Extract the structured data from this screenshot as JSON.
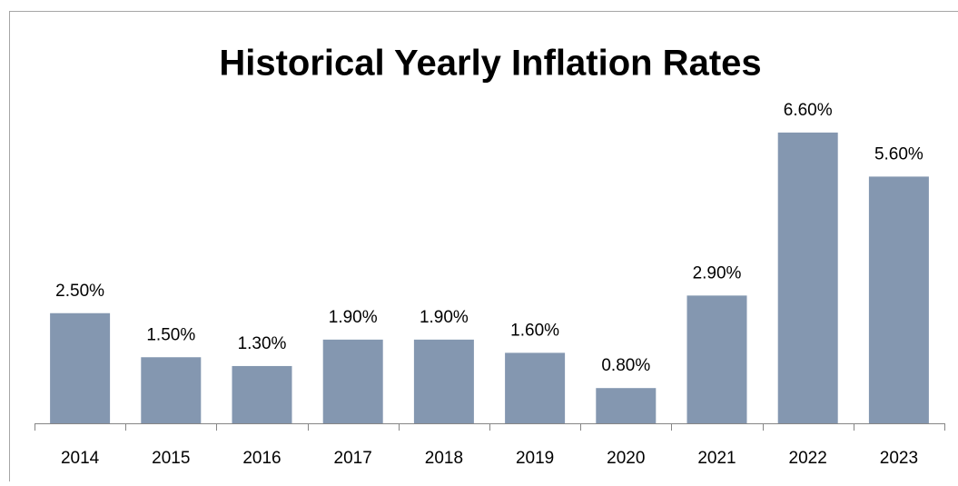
{
  "chart_data": {
    "type": "bar",
    "title": "Historical Yearly Inflation Rates",
    "categories": [
      "2014",
      "2015",
      "2016",
      "2017",
      "2018",
      "2019",
      "2020",
      "2021",
      "2022",
      "2023"
    ],
    "values": [
      2.5,
      1.5,
      1.3,
      1.9,
      1.9,
      1.6,
      0.8,
      2.9,
      6.6,
      5.6
    ],
    "value_labels": [
      "2.50%",
      "1.50%",
      "1.30%",
      "1.90%",
      "1.90%",
      "1.60%",
      "0.80%",
      "2.90%",
      "6.60%",
      "5.60%"
    ],
    "color": "#8497b0"
  }
}
